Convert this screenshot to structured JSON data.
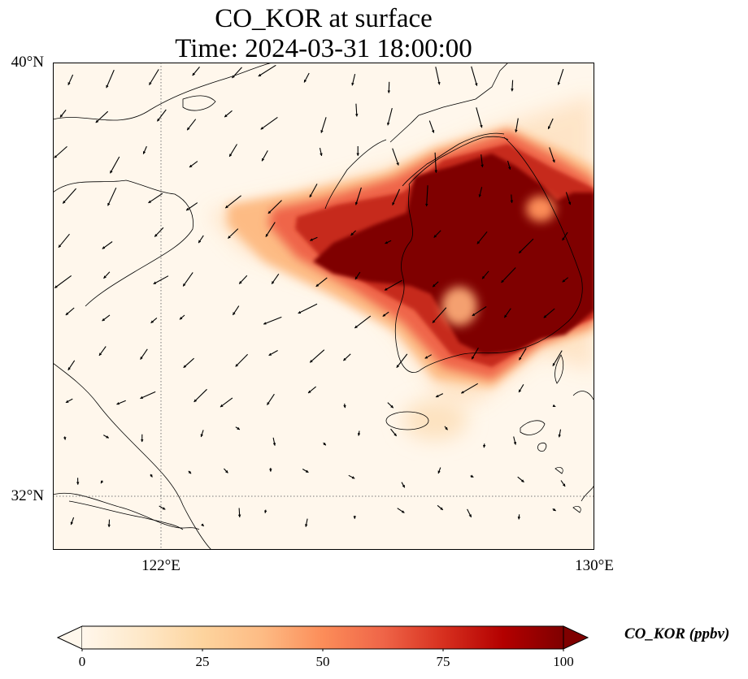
{
  "figure": {
    "title": "CO_KOR at surface",
    "subtitle": "Time: 2024-03-31 18:00:00",
    "lat_labels": [
      "40°N",
      "32°N"
    ],
    "lon_labels": [
      "122°E",
      "130°E"
    ],
    "colorbar": {
      "label": "CO_KOR (ppbv)",
      "ticks": [
        "0",
        "25",
        "50",
        "75",
        "100"
      ],
      "min": 0,
      "max": 100,
      "colormap": "OrRd",
      "colors": [
        "#fff7ec",
        "#fee8c8",
        "#fdd49e",
        "#fdbb84",
        "#fc8d59",
        "#ef6548",
        "#d7301f",
        "#b30000",
        "#7f0000"
      ],
      "extend": "both"
    },
    "extent": {
      "lon_min": 120,
      "lon_max": 130,
      "lat_min": 31,
      "lat_max": 40
    },
    "gridlines": {
      "lon": [
        122
      ],
      "lat": [
        32
      ],
      "style": "dotted"
    },
    "overlay": "wind vectors (arrows)"
  }
}
